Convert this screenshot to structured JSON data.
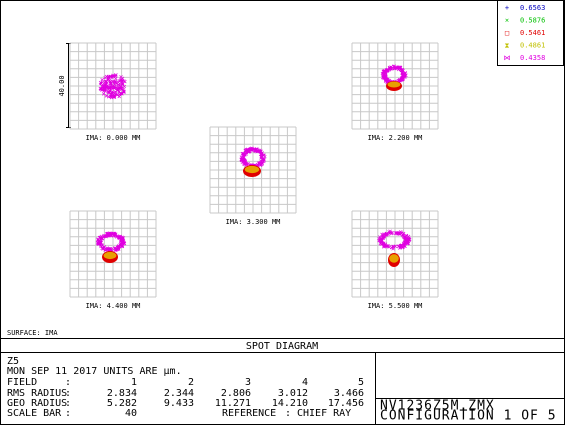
{
  "legend": [
    {
      "symbol": "+",
      "label": "0.6563",
      "color": "#0000c0"
    },
    {
      "symbol": "×",
      "label": "0.5876",
      "color": "#00c000"
    },
    {
      "symbol": "□",
      "label": "0.5461",
      "color": "#e00000"
    },
    {
      "symbol": "⧗",
      "label": "0.4861",
      "color": "#c0c000"
    },
    {
      "symbol": "⋈",
      "label": "0.4358",
      "color": "#e000e0"
    }
  ],
  "scale_label": "40.00",
  "fields": [
    {
      "label": "IMA: 0.000 MM"
    },
    {
      "label": "IMA: 2.200 MM"
    },
    {
      "label": "IMA: 3.300 MM"
    },
    {
      "label": "IMA: 4.400 MM"
    },
    {
      "label": "IMA: 5.500 MM"
    }
  ],
  "surface": "SURFACE: IMA",
  "title": "SPOT DIAGRAM",
  "info": {
    "lens": "Z5",
    "date_units": "MON SEP 11 2017  UNITS ARE µm.",
    "separator": ":",
    "rows": [
      {
        "label": "FIELD",
        "values": [
          "1",
          "2",
          "3",
          "4",
          "5"
        ]
      },
      {
        "label": "RMS RADIUS",
        "values": [
          "2.834",
          "2.344",
          "2.806",
          "3.012",
          "3.466"
        ]
      },
      {
        "label": "GEO RADIUS",
        "values": [
          "5.282",
          "9.433",
          "11.271",
          "14.210",
          "17.456"
        ]
      }
    ],
    "scale_bar": {
      "label": "SCALE BAR",
      "value": "40",
      "reference_label": "REFERENCE",
      "reference": "CHIEF RAY"
    }
  },
  "file": "NV1236Z5M.ZMX",
  "configuration": "CONFIGURATION 1 OF 5"
}
